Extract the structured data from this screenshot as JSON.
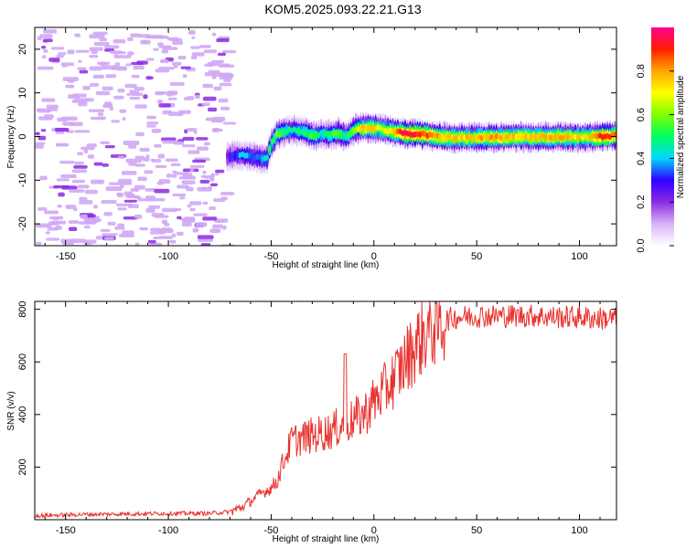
{
  "title": "KOM5.2025.093.22.21.G13",
  "chart_data": [
    {
      "type": "heatmap",
      "name": "spectrogram",
      "xlabel": "Height of straight line (km)",
      "ylabel": "Frequency (Hz)",
      "xlim": [
        -165,
        118
      ],
      "ylim": [
        -25,
        25
      ],
      "xticks": [
        -150,
        -100,
        -50,
        0,
        50,
        100
      ],
      "yticks": [
        -20,
        -10,
        0,
        10,
        20
      ],
      "ridge": [
        [
          -72,
          -4.5,
          0.25
        ],
        [
          -65,
          -4.3,
          0.4
        ],
        [
          -58,
          -4.8,
          0.35
        ],
        [
          -53,
          -5.2,
          0.45
        ],
        [
          -51,
          -2.0,
          0.5
        ],
        [
          -48,
          0.5,
          0.55
        ],
        [
          -44,
          1.2,
          0.5
        ],
        [
          -40,
          1.5,
          0.45
        ],
        [
          -35,
          1.0,
          0.5
        ],
        [
          -30,
          0.2,
          0.55
        ],
        [
          -26,
          0.6,
          0.45
        ],
        [
          -22,
          0.3,
          0.5
        ],
        [
          -18,
          0.8,
          0.55
        ],
        [
          -14,
          0.0,
          0.5
        ],
        [
          -10,
          1.8,
          0.6
        ],
        [
          -4,
          2.0,
          0.8
        ],
        [
          2,
          1.9,
          0.65
        ],
        [
          8,
          1.2,
          0.75
        ],
        [
          14,
          0.7,
          0.95
        ],
        [
          22,
          0.5,
          0.9
        ],
        [
          30,
          0.0,
          0.8
        ],
        [
          38,
          -0.3,
          0.75
        ],
        [
          46,
          -0.3,
          0.75
        ],
        [
          54,
          -0.2,
          0.8
        ],
        [
          62,
          -0.2,
          0.8
        ],
        [
          70,
          -0.1,
          0.75
        ],
        [
          78,
          -0.2,
          0.75
        ],
        [
          86,
          -0.1,
          0.8
        ],
        [
          94,
          -0.1,
          0.75
        ],
        [
          102,
          -0.2,
          0.7
        ],
        [
          110,
          0.1,
          0.9
        ],
        [
          118,
          0.2,
          0.85
        ]
      ],
      "colorbar": {
        "label": "Normalized spectral amplitude",
        "range": [
          0,
          1
        ],
        "ticks": [
          "0.0",
          "0.2",
          "0.4",
          "0.6",
          "0.8"
        ],
        "tick_values": [
          0,
          0.2,
          0.4,
          0.6,
          0.8
        ],
        "colors": [
          "#ffffff",
          "#d8b4f8",
          "#8a2be2",
          "#3000ff",
          "#00d8ff",
          "#00ff60",
          "#80ff00",
          "#ffff00",
          "#ffa500",
          "#ff2000",
          "#ff0090"
        ]
      }
    },
    {
      "type": "line",
      "name": "snr",
      "xlabel": "Height of straight line (km)",
      "ylabel": "SNR (v/v)",
      "xlim": [
        -165,
        118
      ],
      "ylim": [
        0,
        830
      ],
      "xticks": [
        -150,
        -100,
        -50,
        0,
        50,
        100
      ],
      "yticks": [
        200,
        400,
        600,
        800
      ],
      "color": "#e8322e",
      "envelope": [
        [
          -165,
          15
        ],
        [
          -140,
          20
        ],
        [
          -120,
          22
        ],
        [
          -100,
          24
        ],
        [
          -80,
          24
        ],
        [
          -70,
          30
        ],
        [
          -65,
          45
        ],
        [
          -60,
          70
        ],
        [
          -55,
          100
        ],
        [
          -50,
          120
        ],
        [
          -47,
          150
        ],
        [
          -45,
          200
        ],
        [
          -42,
          260
        ],
        [
          -40,
          300
        ],
        [
          -35,
          310
        ],
        [
          -30,
          320
        ],
        [
          -25,
          330
        ],
        [
          -20,
          340
        ],
        [
          -15,
          360
        ],
        [
          -10,
          380
        ],
        [
          -5,
          400
        ],
        [
          0,
          450
        ],
        [
          5,
          490
        ],
        [
          10,
          540
        ],
        [
          15,
          600
        ],
        [
          20,
          660
        ],
        [
          25,
          710
        ],
        [
          30,
          740
        ],
        [
          35,
          760
        ],
        [
          40,
          770
        ],
        [
          50,
          775
        ],
        [
          60,
          775
        ],
        [
          70,
          775
        ],
        [
          80,
          775
        ],
        [
          90,
          770
        ],
        [
          100,
          770
        ],
        [
          110,
          765
        ],
        [
          118,
          765
        ]
      ],
      "spike": [
        -14,
        630
      ]
    }
  ]
}
